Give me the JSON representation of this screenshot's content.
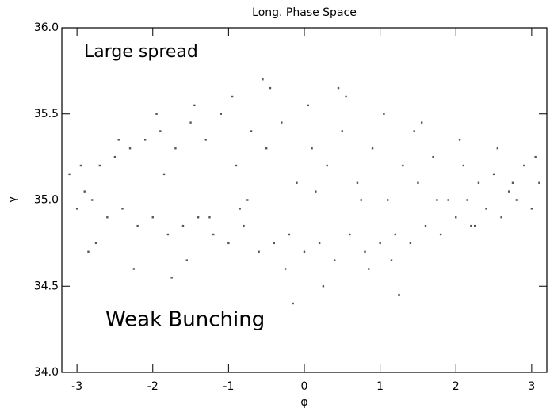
{
  "chart_data": {
    "type": "scatter",
    "title": "Long. Phase Space",
    "x_label": "φ",
    "y_label": "γ",
    "annotations": [
      {
        "text": "Large spread",
        "color": "#000000"
      },
      {
        "text": "Weak Bunching",
        "color": "#d0202a"
      }
    ],
    "color": "#555555",
    "x": [
      -3.1,
      -2.9,
      -2.7,
      -2.5,
      -2.3,
      -2.1,
      -1.9,
      -1.7,
      -1.5,
      -1.3,
      -1.1,
      -0.9,
      -0.7,
      -0.5,
      -0.3,
      -0.1,
      0.1,
      0.3,
      0.5,
      0.7,
      0.9,
      1.1,
      1.3,
      1.5,
      1.7,
      1.9,
      2.1,
      2.3,
      2.5,
      2.7,
      2.9,
      3.1,
      -3.0,
      -2.8,
      -2.6,
      -2.4,
      -2.2,
      -2.0,
      -1.8,
      -1.6,
      -1.4,
      -1.2,
      -1.0,
      -0.8,
      -0.6,
      -0.4,
      -0.2,
      0.0,
      0.2,
      0.4,
      0.6,
      0.8,
      1.0,
      1.2,
      1.4,
      1.6,
      1.8,
      2.0,
      2.2,
      2.4,
      2.6,
      2.8,
      3.0,
      -2.95,
      -2.45,
      -1.95,
      -1.45,
      -0.95,
      -0.45,
      0.05,
      0.55,
      1.05,
      1.55,
      2.05,
      2.55,
      3.05,
      -2.75,
      -2.25,
      -1.75,
      -1.25,
      -0.75,
      -0.25,
      0.25,
      0.75,
      1.25,
      1.75,
      2.25,
      2.75,
      -2.85,
      -1.85,
      -0.85,
      0.15,
      1.15,
      2.15,
      -0.55,
      0.45,
      1.45,
      -1.55,
      0.85,
      -0.15
    ],
    "values": [
      35.15,
      35.05,
      35.2,
      35.25,
      35.3,
      35.35,
      35.4,
      35.3,
      35.45,
      35.35,
      35.5,
      35.2,
      35.4,
      35.3,
      35.45,
      35.1,
      35.3,
      35.2,
      35.4,
      35.1,
      35.3,
      35.0,
      35.2,
      35.1,
      35.25,
      35.0,
      35.2,
      35.1,
      35.15,
      35.05,
      35.2,
      35.1,
      34.95,
      35.0,
      34.9,
      34.95,
      34.85,
      34.9,
      34.8,
      34.85,
      34.9,
      34.8,
      34.75,
      34.85,
      34.7,
      34.75,
      34.8,
      34.7,
      34.75,
      34.65,
      34.8,
      34.7,
      34.75,
      34.8,
      34.75,
      34.85,
      34.8,
      34.9,
      34.85,
      34.95,
      34.9,
      35.0,
      34.95,
      35.2,
      35.35,
      35.5,
      35.55,
      35.6,
      35.65,
      35.55,
      35.6,
      35.5,
      35.45,
      35.35,
      35.3,
      35.25,
      34.75,
      34.6,
      34.55,
      34.9,
      35.0,
      34.6,
      34.5,
      35.0,
      34.45,
      35.0,
      34.85,
      35.1,
      34.7,
      35.15,
      34.95,
      35.05,
      34.65,
      35.0,
      35.7,
      35.65,
      35.4,
      34.65,
      34.6,
      34.4
    ],
    "xlim": [
      -3.2,
      3.2
    ],
    "xticks": [
      -3,
      -2,
      -1,
      0,
      1,
      2,
      3
    ],
    "ylim": [
      34.0,
      36.0
    ],
    "yticks": [
      {
        "value": 34.0,
        "label": "34.0"
      },
      34.5,
      {
        "value": 35.0,
        "label": "35.0"
      },
      35.5,
      {
        "value": 36.0,
        "label": "36.0"
      }
    ]
  }
}
